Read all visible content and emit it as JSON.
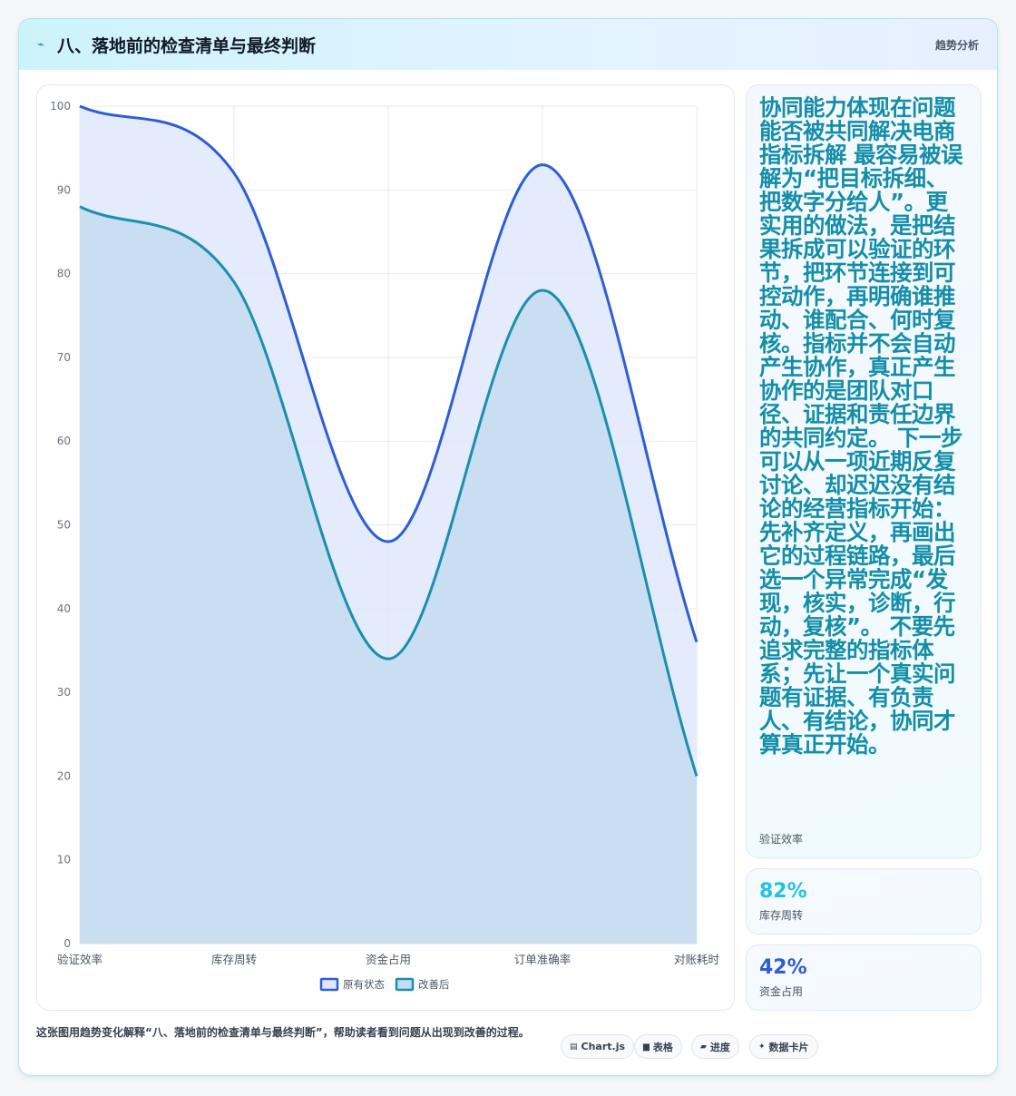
{
  "header": {
    "title": "八、落地前的检查清单与最终判断",
    "tag": "趋势分析"
  },
  "side": {
    "body": "协同能力体现在问题能否被共同解决电商指标拆解 最容易被误解为“把目标拆细、把数字分给人”。更实用的做法，是把结果拆成可以验证的环节，把环节连接到可控动作，再明确谁推动、谁配合、何时复核。指标并不会自动产生协作，真正产生协作的是团队对口径、证据和责任边界的共同约定。 下一步可以从一项近期反复讨论、却迟迟没有结论的经营指标开始：先补齐定义，再画出它的过程链路，最后选一个异常完成“发现，核实，诊断，行动，复核”。 不要先追求完整的指标体系；先让一个真实问题有证据、有负责人、有结论，协同才算真正开始。",
    "body_label": "验证效率",
    "stats": [
      {
        "value": "82%",
        "label": "库存周转",
        "color": "#22c3e0"
      },
      {
        "value": "42%",
        "label": "资金占用",
        "color": "#2d5fd3"
      }
    ]
  },
  "footer": {
    "caption": "这张图用趋势变化解释“八、落地前的检查清单与最终判断”，帮助读者看到问题从出现到改善的过程。",
    "pills": [
      {
        "icon": "▤",
        "label": "Chart.js"
      },
      {
        "icon": "▆",
        "label": "表格"
      },
      {
        "icon": "▰",
        "label": "进度"
      },
      {
        "icon": "✦",
        "label": "数据卡片"
      }
    ]
  },
  "chart_data": {
    "type": "area",
    "categories": [
      "验证效率",
      "库存周转",
      "资金占用",
      "订单准确率",
      "对账耗时"
    ],
    "series": [
      {
        "name": "原有状态",
        "values": [
          100,
          92,
          48,
          93,
          36
        ],
        "color": "#2d5fd3",
        "fill": "#dfe7fb"
      },
      {
        "name": "改善后",
        "values": [
          88,
          79,
          34,
          78,
          20
        ],
        "color": "#1a8fae",
        "fill": "#c5dcf0"
      }
    ],
    "ylim": [
      0,
      100
    ],
    "yticks": [
      0,
      10,
      20,
      30,
      40,
      50,
      60,
      70,
      80,
      90,
      100
    ],
    "grid": true,
    "legend": "bottom"
  }
}
